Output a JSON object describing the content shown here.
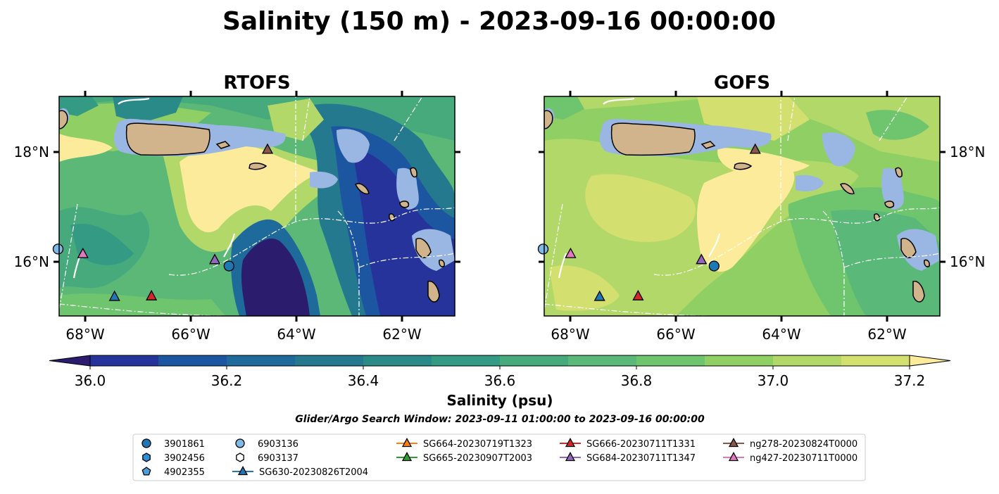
{
  "figure": {
    "title": "Salinity (150 m) - 2023-09-16 00:00:00",
    "search_window": "Glider/Argo Search Window: 2023-09-11 01:00:00 to 2023-09-16 00:00:00"
  },
  "colorbar": {
    "label": "Salinity (psu)",
    "ticks": [
      "36.0",
      "36.2",
      "36.4",
      "36.6",
      "36.8",
      "37.0",
      "37.2"
    ],
    "colors": [
      "#2b1c6e",
      "#26339a",
      "#1d56a0",
      "#1e6a9a",
      "#24798e",
      "#2a8a88",
      "#359a84",
      "#46aa7d",
      "#5ab878",
      "#6fc56e",
      "#8fcf64",
      "#b2d86a",
      "#d3df6e",
      "#fbeb9a"
    ]
  },
  "panels": [
    {
      "title": "RTOFS",
      "lon_ticks": [
        "68°W",
        "66°W",
        "64°W",
        "62°W"
      ],
      "lat_ticks": [
        "18°N",
        "16°N"
      ]
    },
    {
      "title": "GOFS",
      "lon_ticks": [
        "68°W",
        "66°W",
        "64°W",
        "62°W"
      ],
      "lat_ticks": [
        "18°N",
        "16°N"
      ]
    }
  ],
  "legend": {
    "items": [
      {
        "label": "3901861",
        "marker": "circle",
        "color": "#1f77b4"
      },
      {
        "label": "3902456",
        "marker": "hexagon",
        "color": "#2c8ed6"
      },
      {
        "label": "4902355",
        "marker": "pentagon",
        "color": "#4a9fdc"
      },
      {
        "label": "6903136",
        "marker": "circle",
        "color": "#7fb9e6"
      },
      {
        "label": "6903137",
        "marker": "hexagon",
        "color": "#ffffff"
      },
      {
        "label": "SG630-20230826T2004",
        "marker": "triangle",
        "color": "#1f77b4"
      },
      {
        "label": "SG664-20230719T1323",
        "marker": "triangle",
        "color": "#ff7f0e"
      },
      {
        "label": "SG665-20230907T2003",
        "marker": "triangle",
        "color": "#2ca02c"
      },
      {
        "label": "SG666-20230711T1331",
        "marker": "triangle",
        "color": "#d62728"
      },
      {
        "label": "SG684-20230711T1347",
        "marker": "triangle",
        "color": "#9467bd"
      },
      {
        "label": "ng278-20230824T0000",
        "marker": "triangle",
        "color": "#8c564b"
      },
      {
        "label": "ng427-20230711T0000",
        "marker": "triangle",
        "color": "#e377c2"
      }
    ]
  },
  "chart_data": [
    {
      "type": "heatmap",
      "title": "RTOFS",
      "xlim": [
        -68.5,
        -61.0
      ],
      "ylim": [
        15.0,
        19.0
      ],
      "x_ticks": [
        -68,
        -66,
        -64,
        -62
      ],
      "y_ticks": [
        18,
        16
      ],
      "land_color": "#d2b48c",
      "shelf_color": "#9ab6e2",
      "observations": [
        {
          "platform": "ng278-20230824T0000",
          "lon": -64.55,
          "lat": 18.03,
          "marker": "triangle",
          "color": "#8c564b"
        },
        {
          "platform": "ng427-20230711T0000",
          "lon": -68.05,
          "lat": 16.13,
          "marker": "triangle",
          "color": "#e377c2"
        },
        {
          "platform": "SG684-20230711T1347",
          "lon": -65.55,
          "lat": 16.02,
          "marker": "triangle",
          "color": "#9467bd"
        },
        {
          "platform": "3901861",
          "lon": -65.28,
          "lat": 15.91,
          "marker": "circle",
          "color": "#1f77b4"
        },
        {
          "platform": "SG630-20230826T2004",
          "lon": -67.45,
          "lat": 15.35,
          "marker": "triangle",
          "color": "#1f77b4"
        },
        {
          "platform": "SG666-20230711T1331",
          "lon": -66.75,
          "lat": 15.36,
          "marker": "triangle",
          "color": "#d62728"
        },
        {
          "platform": "6903136",
          "lon": -68.52,
          "lat": 16.22,
          "marker": "circle",
          "color": "#7fb9e6"
        }
      ]
    },
    {
      "type": "heatmap",
      "title": "GOFS",
      "xlim": [
        -68.5,
        -61.0
      ],
      "ylim": [
        15.0,
        19.0
      ],
      "x_ticks": [
        -68,
        -66,
        -64,
        -62
      ],
      "y_ticks": [
        18,
        16
      ],
      "land_color": "#d2b48c",
      "shelf_color": "#9ab6e2",
      "observations": [
        {
          "platform": "ng278-20230824T0000",
          "lon": -64.5,
          "lat": 18.03,
          "marker": "triangle",
          "color": "#8c564b"
        },
        {
          "platform": "ng427-20230711T0000",
          "lon": -68.0,
          "lat": 16.13,
          "marker": "triangle",
          "color": "#e377c2"
        },
        {
          "platform": "SG684-20230711T1347",
          "lon": -65.52,
          "lat": 16.02,
          "marker": "triangle",
          "color": "#9467bd"
        },
        {
          "platform": "3901861",
          "lon": -65.28,
          "lat": 15.91,
          "marker": "circle",
          "color": "#1f77b4"
        },
        {
          "platform": "SG630-20230826T2004",
          "lon": -67.45,
          "lat": 15.35,
          "marker": "triangle",
          "color": "#1f77b4"
        },
        {
          "platform": "SG666-20230711T1331",
          "lon": -66.72,
          "lat": 15.36,
          "marker": "triangle",
          "color": "#d62728"
        },
        {
          "platform": "6903136",
          "lon": -68.52,
          "lat": 16.22,
          "marker": "circle",
          "color": "#7fb9e6"
        }
      ]
    }
  ]
}
